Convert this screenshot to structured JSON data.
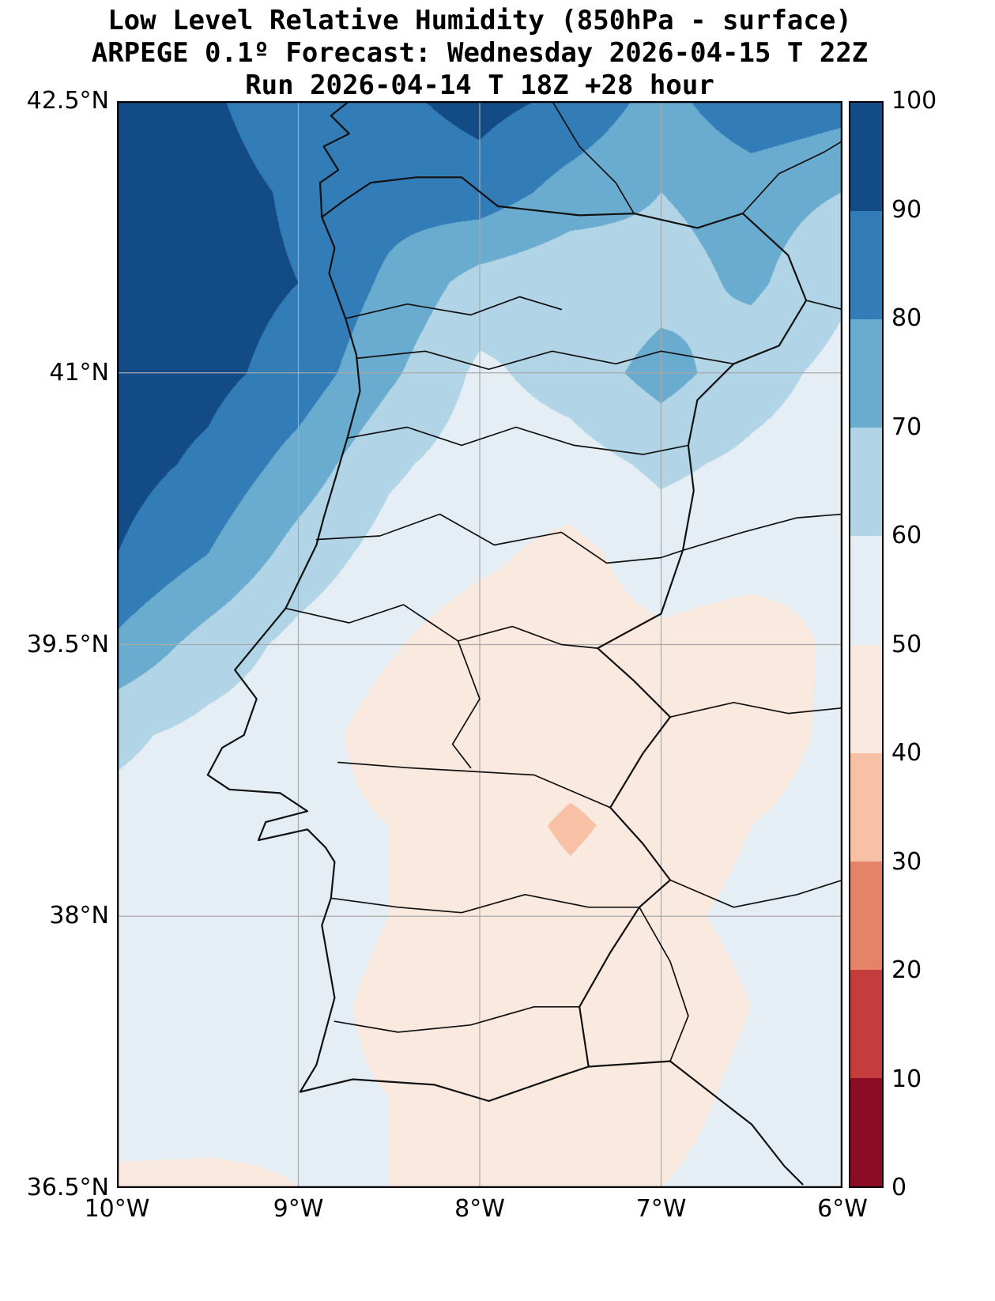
{
  "title": {
    "line1": "Low Level Relative Humidity (850hPa - surface)",
    "line2": "ARPEGE 0.1º Forecast: Wednesday 2026-04-15 T 22Z",
    "line3": "Run 2026-04-14 T 18Z +28 hour"
  },
  "axes": {
    "y_ticks": [
      {
        "label": "42.5°N",
        "lat": 42.5
      },
      {
        "label": "41°N",
        "lat": 41.0
      },
      {
        "label": "39.5°N",
        "lat": 39.5
      },
      {
        "label": "38°N",
        "lat": 38.0
      },
      {
        "label": "36.5°N",
        "lat": 36.5
      }
    ],
    "x_ticks": [
      {
        "label": "10°W",
        "lon": -10.0
      },
      {
        "label": "9°W",
        "lon": -9.0
      },
      {
        "label": "8°W",
        "lon": -8.0
      },
      {
        "label": "7°W",
        "lon": -7.0
      },
      {
        "label": "6°W",
        "lon": -6.0
      }
    ],
    "lat_range": [
      36.5,
      42.5
    ],
    "lon_range": [
      -10.0,
      -6.0
    ],
    "grid_lat": [
      41.0,
      39.5,
      38.0
    ],
    "grid_lon": [
      -9.0,
      -8.0,
      -7.0
    ]
  },
  "colorbar": {
    "ticks": [
      "100",
      "90",
      "80",
      "70",
      "60",
      "50",
      "40",
      "30",
      "20",
      "10",
      "0"
    ],
    "levels": [
      0,
      10,
      20,
      30,
      40,
      50,
      60,
      70,
      80,
      90,
      100
    ],
    "colors_low_to_high": [
      "#8c0c25",
      "#c43c3c",
      "#e58368",
      "#f8c0a4",
      "#fae9df",
      "#e4eef4",
      "#b1d5e7",
      "#6aacd0",
      "#327cb7",
      "#134b86"
    ]
  },
  "chart_data": {
    "type": "heatmap",
    "title": "Low Level Relative Humidity (850hPa - surface)",
    "variable": "relative humidity between 850hPa and surface",
    "units": "%",
    "model": "ARPEGE 0.1º",
    "valid_time": "Wednesday 2026-04-15 T 22Z",
    "run_time": "2026-04-14 T 18Z",
    "lead_hours": 28,
    "colormap": "RdBu, 10 bins of 10% from 0 to 100",
    "region": "Portugal and western Spain, 10°W-6°W / 36.5°N-42.5°N",
    "grid": {
      "lon": [
        -10.0,
        -9.5,
        -9.0,
        -8.5,
        -8.0,
        -7.5,
        -7.0,
        -6.5,
        -6.0
      ],
      "lat": [
        42.5,
        42.0,
        41.5,
        41.0,
        40.5,
        40.0,
        39.5,
        39.0,
        38.5,
        38.0,
        37.5,
        37.0,
        36.5
      ],
      "rh_percent": [
        [
          95,
          92,
          82,
          88,
          93,
          88,
          76,
          88,
          84
        ],
        [
          95,
          95,
          88,
          84,
          86,
          76,
          70,
          74,
          70
        ],
        [
          95,
          94,
          90,
          78,
          66,
          62,
          66,
          72,
          62
        ],
        [
          95,
          93,
          86,
          72,
          58,
          64,
          74,
          64,
          57
        ],
        [
          94,
          88,
          76,
          62,
          55,
          56,
          62,
          58,
          55
        ],
        [
          90,
          80,
          66,
          56,
          52,
          47,
          55,
          54,
          52
        ],
        [
          78,
          66,
          57,
          51,
          45,
          46,
          48,
          45,
          52
        ],
        [
          62,
          57,
          54,
          46,
          48,
          46,
          45,
          46,
          52
        ],
        [
          57,
          55,
          53,
          50,
          46,
          38,
          45,
          50,
          53
        ],
        [
          55,
          55,
          54,
          50,
          47,
          44,
          48,
          52,
          55
        ],
        [
          55,
          54,
          53,
          48,
          46,
          40,
          45,
          50,
          53
        ],
        [
          55,
          54,
          52,
          50,
          48,
          44,
          47,
          52,
          55
        ],
        [
          48,
          48,
          50,
          50,
          49,
          48,
          50,
          53,
          55
        ]
      ]
    }
  }
}
